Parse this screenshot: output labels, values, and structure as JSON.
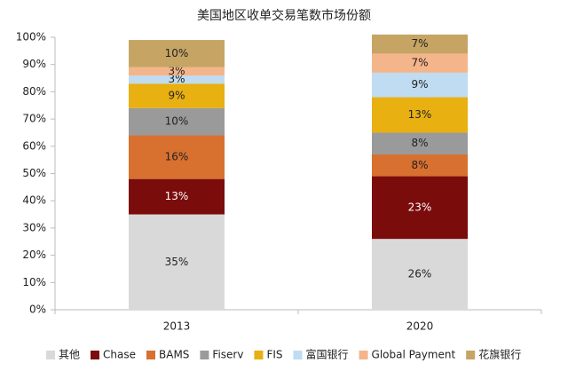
{
  "chart_data": {
    "type": "stacked-bar",
    "title": "美国地区收单交易笔数市场份额",
    "categories": [
      "2013",
      "2020"
    ],
    "series": [
      {
        "name": "其他",
        "color": "#d9d9d9",
        "values": [
          35,
          26
        ],
        "value_labels": [
          "35%",
          "26%"
        ]
      },
      {
        "name": "Chase",
        "color": "#7b0c0c",
        "values": [
          13,
          23
        ],
        "value_labels": [
          "13%",
          "23%"
        ]
      },
      {
        "name": "BAMS",
        "color": "#d8702f",
        "values": [
          16,
          8
        ],
        "value_labels": [
          "16%",
          "8%"
        ]
      },
      {
        "name": "Fiserv",
        "color": "#9a9a9a",
        "values": [
          10,
          8
        ],
        "value_labels": [
          "10%",
          "8%"
        ]
      },
      {
        "name": "FIS",
        "color": "#e8b010",
        "values": [
          9,
          13
        ],
        "value_labels": [
          "9%",
          "13%"
        ]
      },
      {
        "name": "富国银行",
        "color": "#bfdcf2",
        "values": [
          3,
          9
        ],
        "value_labels": [
          "3%",
          "9%"
        ]
      },
      {
        "name": "Global Payment",
        "color": "#f5b58a",
        "values": [
          3,
          7
        ],
        "value_labels": [
          "3%",
          "7%"
        ]
      },
      {
        "name": "花旗银行",
        "color": "#c6a463",
        "values": [
          10,
          7
        ],
        "value_labels": [
          "10%",
          "7%"
        ]
      }
    ],
    "ylim": [
      0,
      100
    ],
    "yticks": [
      {
        "value": 0,
        "label": "0%"
      },
      {
        "value": 10,
        "label": "10%"
      },
      {
        "value": 20,
        "label": "20%"
      },
      {
        "value": 30,
        "label": "30%"
      },
      {
        "value": 40,
        "label": "40%"
      },
      {
        "value": 50,
        "label": "50%"
      },
      {
        "value": 60,
        "label": "60%"
      },
      {
        "value": 70,
        "label": "70%"
      },
      {
        "value": 80,
        "label": "80%"
      },
      {
        "value": 90,
        "label": "90%"
      },
      {
        "value": 100,
        "label": "100%"
      }
    ],
    "grid": false,
    "legend": "bottom"
  }
}
